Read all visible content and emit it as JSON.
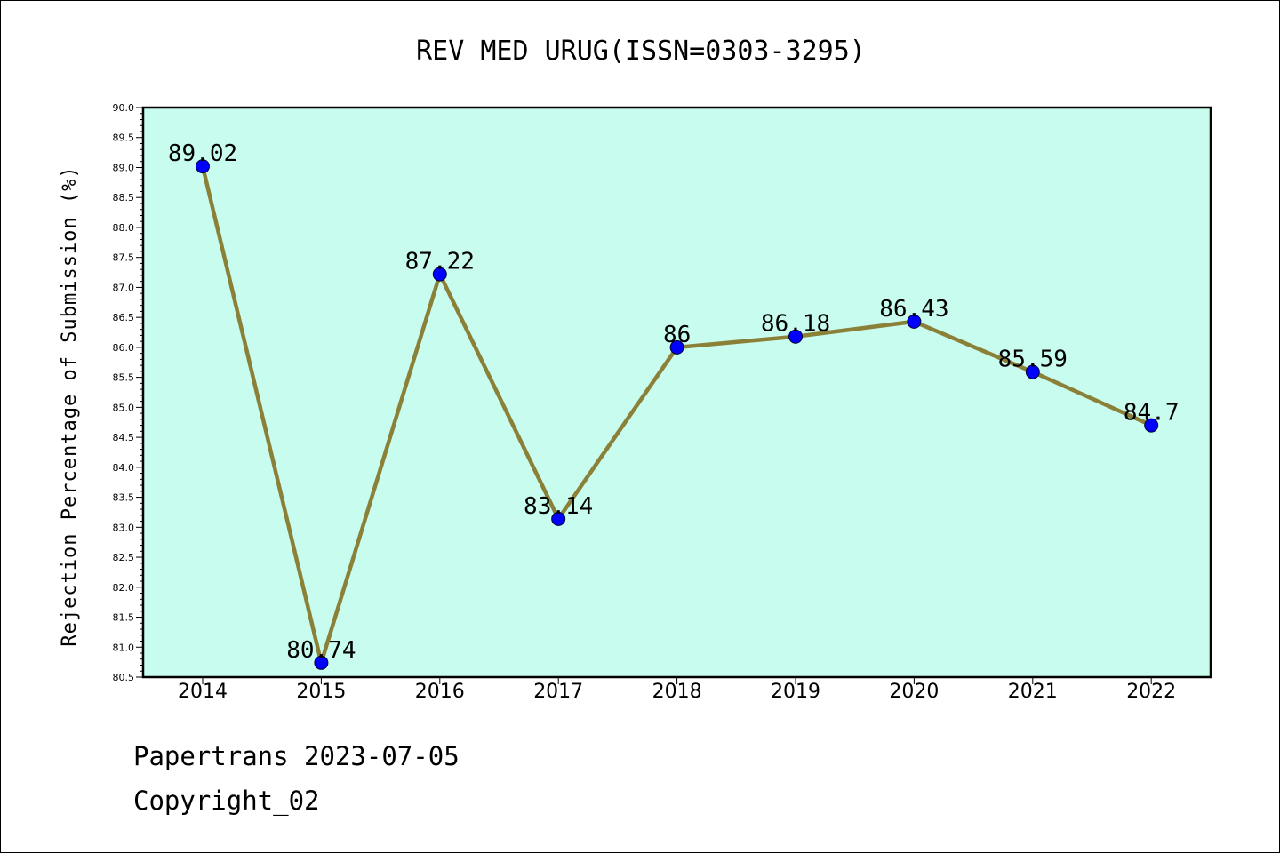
{
  "chart_data": {
    "type": "line",
    "title": "REV MED URUG(ISSN=0303-3295)",
    "xlabel": "",
    "ylabel": "Rejection Percentage of Submission (%)",
    "categories": [
      "2014",
      "2015",
      "2016",
      "2017",
      "2018",
      "2019",
      "2020",
      "2021",
      "2022"
    ],
    "series": [
      {
        "values": [
          89.02,
          80.74,
          87.22,
          83.14,
          86,
          86.18,
          86.43,
          85.59,
          84.7
        ],
        "labels": [
          "89.02",
          "80.74",
          "87.22",
          "83.14",
          "86",
          "86.18",
          "86.43",
          "85.59",
          "84.7"
        ]
      }
    ],
    "ylim": [
      80.5,
      90.0
    ],
    "yticks": [
      "80.5",
      "81.0",
      "81.5",
      "82.0",
      "82.5",
      "83.0",
      "83.5",
      "84.0",
      "84.5",
      "85.0",
      "85.5",
      "86.0",
      "86.5",
      "87.0",
      "87.5",
      "88.0",
      "88.5",
      "89.0",
      "89.5",
      "90.0"
    ],
    "grid": false,
    "colors": {
      "plot_background": "#c8fcee",
      "line": "#8b8038",
      "marker": "#0000ff"
    }
  },
  "footer": {
    "line1": "Papertrans 2023-07-05",
    "line2": "Copyright_02"
  }
}
